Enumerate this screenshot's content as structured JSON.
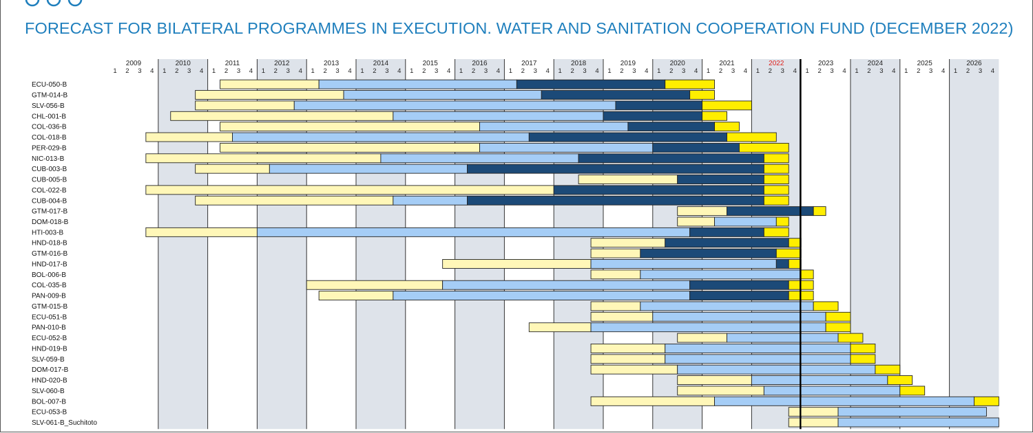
{
  "title": "FORECAST FOR BILATERAL PROGRAMMES IN EXECUTION. WATER AND SANITATION COOPERATION FUND (DECEMBER 2022)",
  "chart_data": {
    "type": "gantt",
    "title": "FORECAST FOR BILATERAL PROGRAMMES IN EXECUTION. WATER AND SANITATION COOPERATION FUND (DECEMBER 2022)",
    "years": [
      "2009",
      "2010",
      "2011",
      "2012",
      "2013",
      "2014",
      "2015",
      "2016",
      "2017",
      "2018",
      "2019",
      "2020",
      "2021",
      "2022",
      "2023",
      "2024",
      "2025",
      "2026"
    ],
    "quarters": [
      "1",
      "2",
      "3",
      "4"
    ],
    "highlight_year": "2022",
    "current_marker": "2022 Q4 end",
    "phase_colors": {
      "light_yellow": "#fff7b8",
      "light_blue": "#a5cdf6",
      "dark_blue": "#1c4a78",
      "yellow": "#ffee00"
    },
    "programmes": [
      {
        "name": "ECU-050-B",
        "segments": [
          [
            9,
            17,
            "light_yellow"
          ],
          [
            17,
            33,
            "light_blue"
          ],
          [
            33,
            45,
            "dark_blue"
          ],
          [
            45,
            49,
            "yellow"
          ]
        ]
      },
      {
        "name": "GTM-014-B",
        "segments": [
          [
            7,
            19,
            "light_yellow"
          ],
          [
            19,
            35,
            "light_blue"
          ],
          [
            35,
            47,
            "dark_blue"
          ],
          [
            47,
            49,
            "yellow"
          ]
        ]
      },
      {
        "name": "SLV-056-B",
        "segments": [
          [
            7,
            15,
            "light_yellow"
          ],
          [
            15,
            41,
            "light_blue"
          ],
          [
            41,
            48,
            "dark_blue"
          ],
          [
            48,
            52,
            "yellow"
          ]
        ]
      },
      {
        "name": "CHL-001-B",
        "segments": [
          [
            5,
            23,
            "light_yellow"
          ],
          [
            23,
            40,
            "light_blue"
          ],
          [
            40,
            48,
            "dark_blue"
          ],
          [
            48,
            50,
            "yellow"
          ]
        ]
      },
      {
        "name": "COL-036-B",
        "segments": [
          [
            9,
            30,
            "light_yellow"
          ],
          [
            30,
            42,
            "light_blue"
          ],
          [
            42,
            49,
            "dark_blue"
          ],
          [
            49,
            51,
            "yellow"
          ]
        ]
      },
      {
        "name": "COL-018-B",
        "segments": [
          [
            3,
            10,
            "light_yellow"
          ],
          [
            10,
            34,
            "light_blue"
          ],
          [
            34,
            50,
            "dark_blue"
          ],
          [
            50,
            54,
            "yellow"
          ]
        ]
      },
      {
        "name": "PER-029-B",
        "segments": [
          [
            9,
            30,
            "light_yellow"
          ],
          [
            30,
            44,
            "light_blue"
          ],
          [
            44,
            51,
            "dark_blue"
          ],
          [
            51,
            55,
            "yellow"
          ]
        ]
      },
      {
        "name": "NIC-013-B",
        "segments": [
          [
            3,
            22,
            "light_yellow"
          ],
          [
            22,
            38,
            "light_blue"
          ],
          [
            38,
            53,
            "dark_blue"
          ],
          [
            53,
            55,
            "yellow"
          ]
        ]
      },
      {
        "name": "CUB-003-B",
        "segments": [
          [
            7,
            13,
            "light_yellow"
          ],
          [
            13,
            29,
            "light_blue"
          ],
          [
            29,
            53,
            "dark_blue"
          ],
          [
            53,
            55,
            "yellow"
          ]
        ]
      },
      {
        "name": "CUB-005-B",
        "segments": [
          [
            38,
            46,
            "light_yellow"
          ],
          [
            46,
            53,
            "dark_blue"
          ],
          [
            53,
            55,
            "yellow"
          ]
        ]
      },
      {
        "name": "COL-022-B",
        "segments": [
          [
            3,
            36,
            "light_yellow"
          ],
          [
            36,
            53,
            "dark_blue"
          ],
          [
            53,
            55,
            "yellow"
          ]
        ]
      },
      {
        "name": "CUB-004-B",
        "segments": [
          [
            7,
            23,
            "light_yellow"
          ],
          [
            23,
            29,
            "light_blue"
          ],
          [
            29,
            53,
            "dark_blue"
          ],
          [
            53,
            55,
            "yellow"
          ]
        ]
      },
      {
        "name": "GTM-017-B",
        "segments": [
          [
            46,
            50,
            "light_yellow"
          ],
          [
            50,
            57,
            "dark_blue"
          ],
          [
            57,
            58,
            "yellow"
          ]
        ]
      },
      {
        "name": "DOM-018-B",
        "segments": [
          [
            46,
            49,
            "light_yellow"
          ],
          [
            49,
            54,
            "light_blue"
          ],
          [
            54,
            55,
            "yellow"
          ]
        ]
      },
      {
        "name": "HTI-003-B",
        "segments": [
          [
            3,
            12,
            "light_yellow"
          ],
          [
            12,
            47,
            "light_blue"
          ],
          [
            47,
            53,
            "dark_blue"
          ],
          [
            53,
            55,
            "yellow"
          ]
        ]
      },
      {
        "name": "HND-018-B",
        "segments": [
          [
            39,
            45,
            "light_yellow"
          ],
          [
            45,
            55,
            "dark_blue"
          ],
          [
            55,
            56,
            "yellow"
          ]
        ]
      },
      {
        "name": "GTM-016-B",
        "segments": [
          [
            39,
            43,
            "light_yellow"
          ],
          [
            43,
            54,
            "dark_blue"
          ],
          [
            54,
            56,
            "yellow"
          ]
        ]
      },
      {
        "name": "HND-017-B",
        "segments": [
          [
            27,
            39,
            "light_yellow"
          ],
          [
            39,
            54,
            "light_blue"
          ],
          [
            54,
            55,
            "dark_blue"
          ],
          [
            55,
            56,
            "yellow"
          ]
        ]
      },
      {
        "name": "BOL-006-B",
        "segments": [
          [
            39,
            43,
            "light_yellow"
          ],
          [
            43,
            56,
            "light_blue"
          ],
          [
            56,
            57,
            "yellow"
          ]
        ]
      },
      {
        "name": "COL-035-B",
        "segments": [
          [
            16,
            27,
            "light_yellow"
          ],
          [
            27,
            47,
            "light_blue"
          ],
          [
            47,
            55,
            "dark_blue"
          ],
          [
            55,
            57,
            "yellow"
          ]
        ]
      },
      {
        "name": "PAN-009-B",
        "segments": [
          [
            17,
            23,
            "light_yellow"
          ],
          [
            23,
            47,
            "light_blue"
          ],
          [
            47,
            55,
            "dark_blue"
          ],
          [
            55,
            57,
            "yellow"
          ]
        ]
      },
      {
        "name": "GTM-015-B",
        "segments": [
          [
            39,
            43,
            "light_yellow"
          ],
          [
            43,
            57,
            "light_blue"
          ],
          [
            57,
            59,
            "yellow"
          ]
        ]
      },
      {
        "name": "ECU-051-B",
        "segments": [
          [
            39,
            44,
            "light_yellow"
          ],
          [
            44,
            58,
            "light_blue"
          ],
          [
            58,
            60,
            "yellow"
          ]
        ]
      },
      {
        "name": "PAN-010-B",
        "segments": [
          [
            34,
            39,
            "light_yellow"
          ],
          [
            39,
            58,
            "light_blue"
          ],
          [
            58,
            60,
            "yellow"
          ]
        ]
      },
      {
        "name": "ECU-052-B",
        "segments": [
          [
            46,
            50,
            "light_yellow"
          ],
          [
            50,
            59,
            "light_blue"
          ],
          [
            59,
            61,
            "yellow"
          ]
        ]
      },
      {
        "name": "HND-019-B",
        "segments": [
          [
            39,
            45,
            "light_yellow"
          ],
          [
            45,
            60,
            "light_blue"
          ],
          [
            60,
            62,
            "yellow"
          ]
        ]
      },
      {
        "name": "SLV-059-B",
        "segments": [
          [
            39,
            45,
            "light_yellow"
          ],
          [
            45,
            60,
            "light_blue"
          ],
          [
            60,
            62,
            "yellow"
          ]
        ]
      },
      {
        "name": "DOM-017-B",
        "segments": [
          [
            39,
            46,
            "light_yellow"
          ],
          [
            46,
            62,
            "light_blue"
          ],
          [
            62,
            64,
            "yellow"
          ]
        ]
      },
      {
        "name": "HND-020-B",
        "segments": [
          [
            46,
            52,
            "light_yellow"
          ],
          [
            52,
            63,
            "light_blue"
          ],
          [
            63,
            65,
            "yellow"
          ]
        ]
      },
      {
        "name": "SLV-060-B",
        "segments": [
          [
            46,
            53,
            "light_yellow"
          ],
          [
            53,
            64,
            "light_blue"
          ],
          [
            64,
            66,
            "yellow"
          ]
        ]
      },
      {
        "name": "BOL-007-B",
        "segments": [
          [
            39,
            49,
            "light_yellow"
          ],
          [
            49,
            70,
            "light_blue"
          ],
          [
            70,
            72,
            "yellow"
          ]
        ]
      },
      {
        "name": "ECU-053-B",
        "segments": [
          [
            55,
            59,
            "light_yellow"
          ],
          [
            59,
            71,
            "light_blue"
          ]
        ]
      },
      {
        "name": "SLV-061-B_Suchitoto",
        "segments": [
          [
            55,
            59,
            "light_yellow"
          ],
          [
            59,
            72,
            "light_blue"
          ]
        ]
      }
    ]
  }
}
